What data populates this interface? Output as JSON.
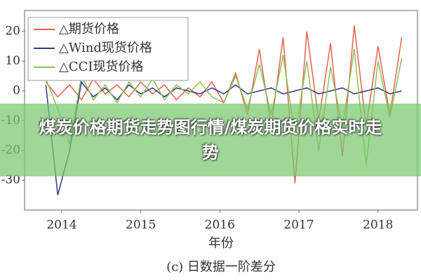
{
  "chart_data": {
    "type": "line",
    "x": [
      2013.8,
      2013.95,
      2014.1,
      2014.25,
      2014.4,
      2014.55,
      2014.7,
      2014.85,
      2015.0,
      2015.15,
      2015.3,
      2015.45,
      2015.6,
      2015.75,
      2015.9,
      2016.05,
      2016.2,
      2016.35,
      2016.5,
      2016.65,
      2016.8,
      2016.95,
      2017.1,
      2017.25,
      2017.4,
      2017.55,
      2017.7,
      2017.85,
      2018.0,
      2018.15,
      2018.3
    ],
    "series": [
      {
        "name": "△期货价格",
        "color": "#e8604c",
        "values": [
          3,
          -2,
          2,
          -3,
          4,
          -1,
          2,
          -2,
          3,
          -1,
          2,
          -3,
          1,
          -2,
          3,
          -4,
          6,
          -8,
          14,
          -12,
          18,
          -31,
          20,
          -10,
          16,
          -22,
          22,
          -12,
          15,
          -8,
          18
        ]
      },
      {
        "name": "△Wind现货价格",
        "color": "#2b3a8c",
        "values": [
          2,
          -35,
          -20,
          3,
          -2,
          1,
          -3,
          2,
          -1,
          1,
          -2,
          1,
          0,
          -1,
          1,
          -1,
          2,
          -1,
          0,
          1,
          -1,
          0,
          1,
          -1,
          0,
          1,
          -1,
          0,
          1,
          -1,
          0
        ]
      },
      {
        "name": "△CCI现货价格",
        "color": "#8cc152",
        "values": [
          4,
          -6,
          -18,
          5,
          -3,
          2,
          -4,
          3,
          -2,
          4,
          -3,
          2,
          -1,
          3,
          -2,
          -4,
          5,
          -6,
          9,
          -8,
          12,
          -15,
          10,
          -20,
          8,
          -12,
          14,
          -25,
          10,
          -9,
          11
        ]
      }
    ],
    "xlim": [
      2013.53,
      2018.5
    ],
    "xticks": [
      2014,
      2015,
      2016,
      2017,
      2018
    ],
    "ylim": [
      -40,
      27
    ],
    "yticks": [
      -30,
      -20,
      -10,
      0,
      10,
      20
    ],
    "x_label": "年份",
    "caption": "(c) 日数据一阶差分",
    "overlay_title": "煤炭价格期货走势图行情/煤炭期货价格实时走势"
  }
}
